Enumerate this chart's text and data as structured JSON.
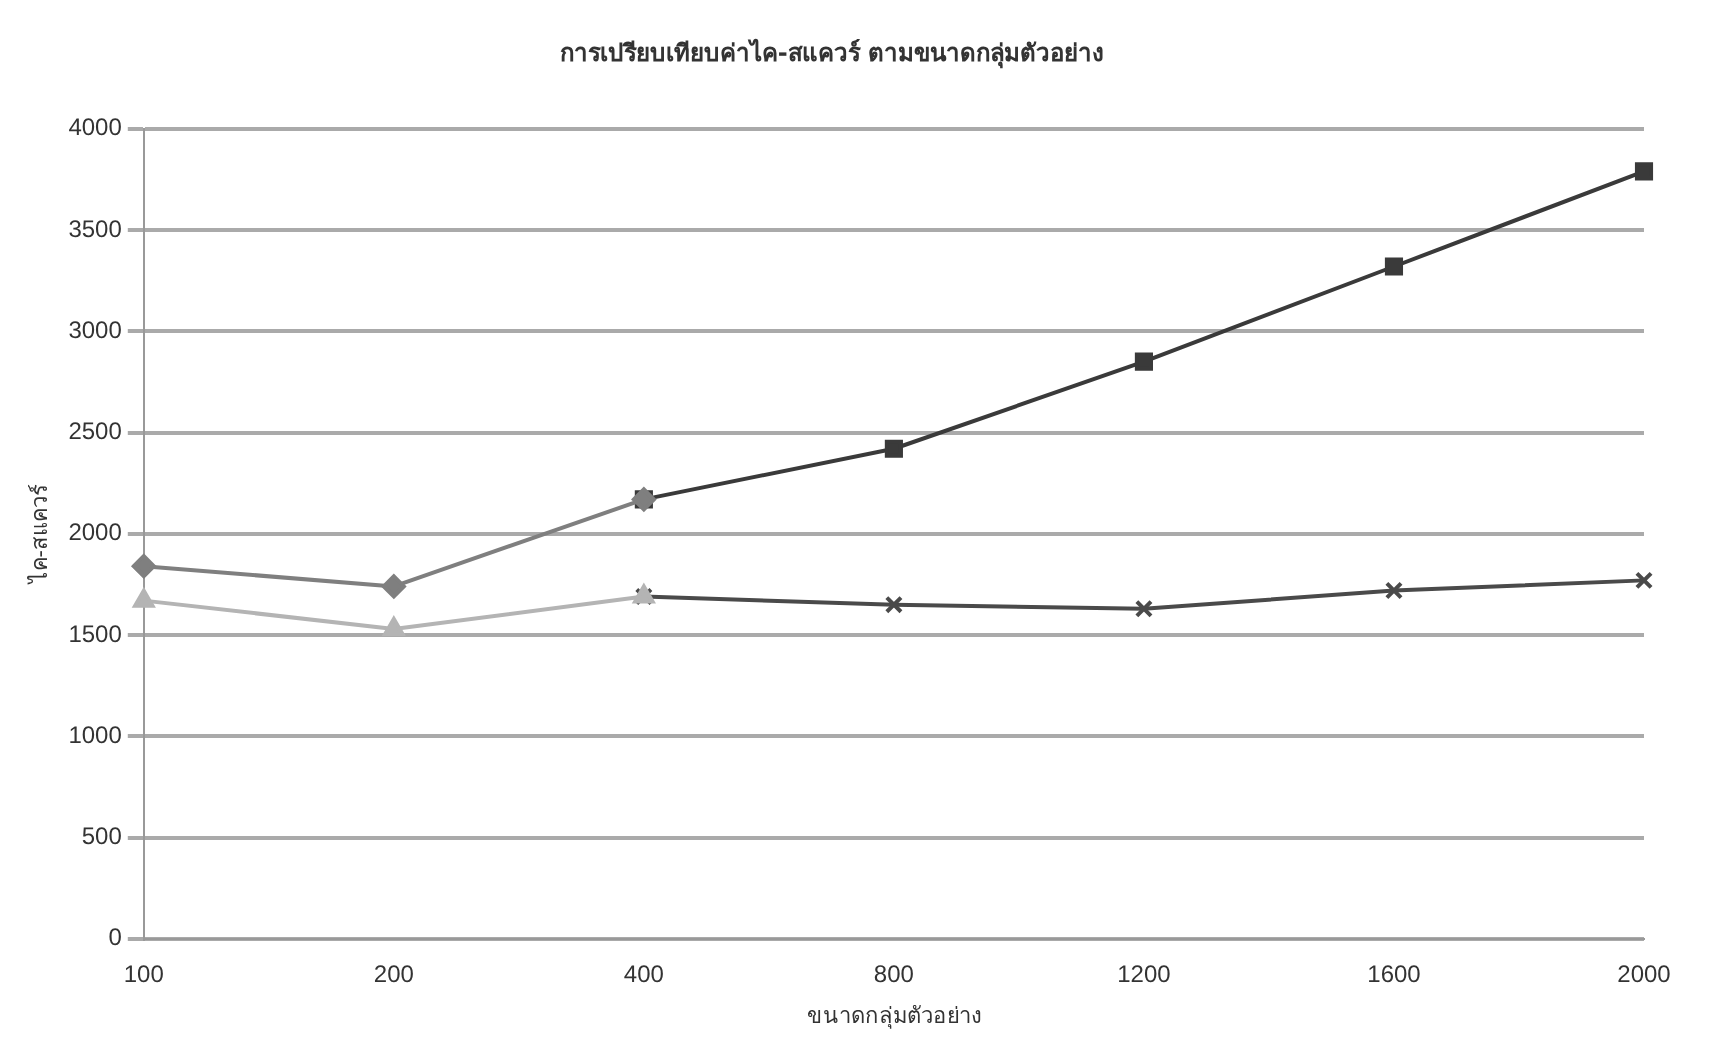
{
  "chart_data": {
    "type": "line",
    "title": "การเปรียบเทียบค่าไค-สแควร์ ตามขนาดกลุ่มตัวอย่าง",
    "xlabel": "ขนาดกลุ่มตัวอย่าง",
    "ylabel": "ไค-สแควร์",
    "categories": [
      "100",
      "200",
      "400",
      "800",
      "1200",
      "1600",
      "2000"
    ],
    "series": [
      {
        "color": "#7f7f7f",
        "marker": "diamond",
        "values": [
          1840,
          1740,
          2170,
          null,
          null,
          null,
          null
        ]
      },
      {
        "color": "#3a3a3a",
        "marker": "square",
        "values": [
          null,
          null,
          2170,
          2420,
          2850,
          3320,
          3790
        ]
      },
      {
        "color": "#b4b4b4",
        "marker": "triangle",
        "values": [
          1670,
          1530,
          1690,
          null,
          null,
          null,
          null
        ]
      },
      {
        "color": "#4a4a4a",
        "marker": "cross",
        "values": [
          null,
          null,
          1690,
          1650,
          1630,
          1720,
          1770
        ]
      }
    ],
    "ylim": [
      0,
      4000
    ],
    "yticks": [
      0,
      500,
      1000,
      1500,
      2000,
      2500,
      3000,
      3500,
      4000
    ],
    "grid": "y"
  }
}
